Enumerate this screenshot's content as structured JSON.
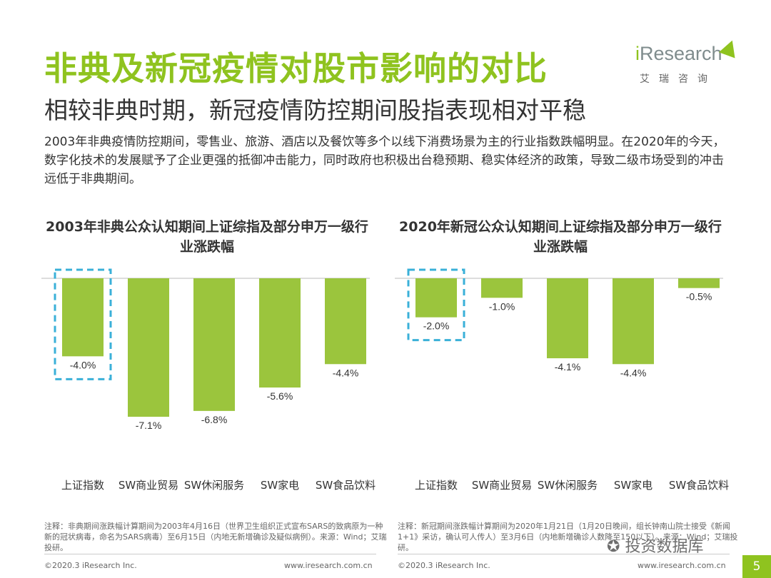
{
  "header": {
    "title": "非典及新冠疫情对股市影响的对比",
    "subtitle": "相较非典时期，新冠疫情防控期间股指表现相对平稳"
  },
  "logo": {
    "brand_i": "i",
    "brand_rest": "Research",
    "tagline": "艾瑞咨询"
  },
  "intro": "2003年非典疫情防控期间，零售业、旅游、酒店以及餐饮等多个以线下消费场景为主的行业指数跌幅明显。在2020年的今天，数字化技术的发展赋予了企业更强的抵御冲击能力，同时政府也积极出台稳预期、稳实体经济的政策，导致二级市场受到的冲击远低于非典期间。",
  "chart_data": [
    {
      "type": "bar",
      "title": "2003年非典公众认知期间上证综指及部分申万一级行业涨跌幅",
      "categories": [
        "上证指数",
        "SW商业贸易",
        "SW休闲服务",
        "SW家电",
        "SW食品饮料"
      ],
      "values": [
        -4.0,
        -7.1,
        -6.8,
        -5.6,
        -4.4
      ],
      "labels": [
        "-4.0%",
        "-7.1%",
        "-6.8%",
        "-5.6%",
        "-4.4%"
      ],
      "highlight_index": 0,
      "ylim": [
        -7.5,
        0
      ],
      "grid": false,
      "bar_color": "#9bc53d",
      "highlight_color": "#3ab0d8"
    },
    {
      "type": "bar",
      "title": "2020年新冠公众认知期间上证综指及部分申万一级行业涨跌幅",
      "categories": [
        "上证指数",
        "SW商业贸易",
        "SW休闲服务",
        "SW家电",
        "SW食品饮料"
      ],
      "values": [
        -2.0,
        -1.0,
        -4.1,
        -4.4,
        -0.5
      ],
      "labels": [
        "-2.0%",
        "-1.0%",
        "-4.1%",
        "-4.4%",
        "-0.5%"
      ],
      "highlight_index": 0,
      "ylim": [
        -7.5,
        0
      ],
      "grid": false,
      "bar_color": "#9bc53d",
      "highlight_color": "#3ab0d8"
    }
  ],
  "notes": {
    "left": "注释：非典期间涨跌幅计算期间为2003年4月16日（世界卫生组织正式宣布SARS的致病原为一种新的冠状病毒，命名为SARS病毒）至6月15日（内地无新增确诊及疑似病例）。来源：Wind；艾瑞投研。",
    "right": "注释：新冠期间涨跌幅计算期间为2020年1月21日（1月20日晚间，组长钟南山院士接受《新闻1+1》采访，确认可人传人）至3月6日（内地新增确诊人数降至150以下）。来源：Wind；艾瑞投研。"
  },
  "footer": {
    "copyright_left": "©2020.3 iResearch Inc.",
    "url_left": "www.iresearch.com.cn",
    "copyright_right": "©2020.3 iResearch Inc.",
    "url_right": "www.iresearch.com.cn",
    "page": "5",
    "watermark": "投资数据库"
  }
}
